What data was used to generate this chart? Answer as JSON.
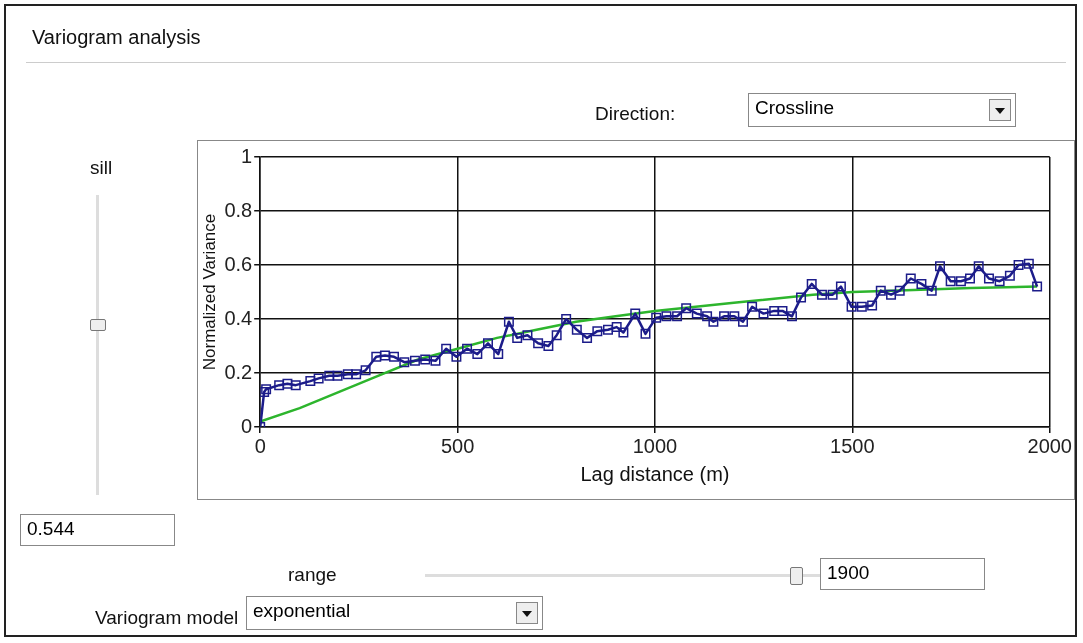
{
  "chart_data": {
    "type": "line",
    "title": "Variogram analysis",
    "xlabel": "Lag distance (m)",
    "ylabel": "Normalized Variance",
    "xlim": [
      0,
      2000
    ],
    "xticks": [
      0,
      500,
      1000,
      1500,
      2000
    ],
    "ylim": [
      0,
      1
    ],
    "yticks": [
      0,
      0.2,
      0.4,
      0.6,
      0.8,
      1
    ],
    "grid": true,
    "legend": false,
    "line_style": "solid",
    "series": [
      {
        "color": "#1c1c8a",
        "marker": "square",
        "x": [
          0,
          10,
          15,
          48,
          69,
          90,
          127,
          148,
          175,
          196,
          222,
          243,
          267,
          294,
          316,
          339,
          365,
          392,
          418,
          444,
          471,
          497,
          524,
          550,
          577,
          603,
          630,
          651,
          677,
          704,
          730,
          751,
          775,
          802,
          828,
          854,
          881,
          903,
          920,
          950,
          976,
          1003,
          1029,
          1056,
          1079,
          1106,
          1132,
          1148,
          1175,
          1201,
          1223,
          1246,
          1275,
          1302,
          1323,
          1347,
          1370,
          1397,
          1423,
          1450,
          1471,
          1498,
          1524,
          1550,
          1572,
          1598,
          1620,
          1648,
          1675,
          1701,
          1722,
          1749,
          1775,
          1798,
          1820,
          1846,
          1873,
          1899,
          1921,
          1947,
          1968
        ],
        "values": [
          0,
          0.13,
          0.14,
          0.155,
          0.16,
          0.155,
          0.17,
          0.18,
          0.19,
          0.19,
          0.195,
          0.195,
          0.21,
          0.26,
          0.265,
          0.26,
          0.24,
          0.245,
          0.25,
          0.245,
          0.29,
          0.26,
          0.29,
          0.27,
          0.31,
          0.27,
          0.39,
          0.33,
          0.34,
          0.31,
          0.3,
          0.34,
          0.4,
          0.36,
          0.33,
          0.355,
          0.36,
          0.37,
          0.35,
          0.42,
          0.345,
          0.405,
          0.41,
          0.41,
          0.44,
          0.42,
          0.41,
          0.39,
          0.41,
          0.41,
          0.39,
          0.445,
          0.42,
          0.43,
          0.43,
          0.41,
          0.48,
          0.53,
          0.49,
          0.49,
          0.52,
          0.445,
          0.445,
          0.45,
          0.505,
          0.49,
          0.505,
          0.55,
          0.53,
          0.505,
          0.595,
          0.54,
          0.54,
          0.55,
          0.595,
          0.55,
          0.54,
          0.56,
          0.6,
          0.605,
          0.52
        ]
      },
      {
        "color": "#2db52d",
        "marker": "none",
        "x": [
          0,
          100,
          200,
          300,
          400,
          500,
          600,
          700,
          800,
          900,
          1000,
          1200,
          1400,
          1500,
          1600,
          1800,
          1968
        ],
        "values": [
          0.02,
          0.07,
          0.13,
          0.19,
          0.25,
          0.29,
          0.33,
          0.36,
          0.39,
          0.41,
          0.43,
          0.46,
          0.49,
          0.5,
          0.505,
          0.515,
          0.52
        ]
      }
    ],
    "annotations": [
      "Direction:",
      "Crossline",
      "sill",
      "0.544",
      "range",
      "1900",
      "Variogram model",
      "exponential"
    ]
  }
}
